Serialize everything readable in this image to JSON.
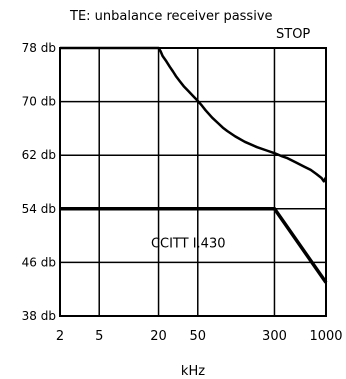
{
  "chart_data": {
    "type": "line",
    "title": "TE: unbalance receiver passive",
    "status": "STOP",
    "xlabel": "kHz",
    "ylabel": "",
    "x_scale": "log",
    "xlim": [
      2,
      1000
    ],
    "ylim": [
      38,
      78
    ],
    "x_ticks": [
      "2",
      "5",
      "20",
      "50",
      "300",
      "1000"
    ],
    "y_ticks": [
      "78 db",
      "70 db",
      "62 db",
      "54 db",
      "46 db",
      "38 db"
    ],
    "grid": true,
    "series": [
      {
        "name": "",
        "x": [
          2,
          20,
          21,
          22,
          24,
          26,
          28,
          30,
          33,
          36,
          40,
          45,
          50,
          55,
          60,
          70,
          80,
          90,
          100,
          120,
          150,
          200,
          250,
          300,
          350,
          400,
          500,
          600,
          700,
          800,
          900,
          950,
          1000
        ],
        "y": [
          78,
          78,
          77.5,
          76.8,
          76.0,
          75.2,
          74.5,
          73.8,
          73.0,
          72.3,
          71.6,
          70.8,
          70.1,
          69.4,
          68.7,
          67.6,
          66.8,
          66.1,
          65.6,
          64.8,
          64.0,
          63.2,
          62.7,
          62.3,
          61.9,
          61.6,
          60.9,
          60.3,
          59.8,
          59.2,
          58.6,
          58.1,
          58.7
        ]
      },
      {
        "name": "",
        "x": [
          2,
          300,
          1000
        ],
        "y": [
          54,
          54,
          43
        ]
      }
    ],
    "annotations": [
      {
        "text": "CCITT I.430",
        "x": 40,
        "y": 48.2
      }
    ]
  }
}
